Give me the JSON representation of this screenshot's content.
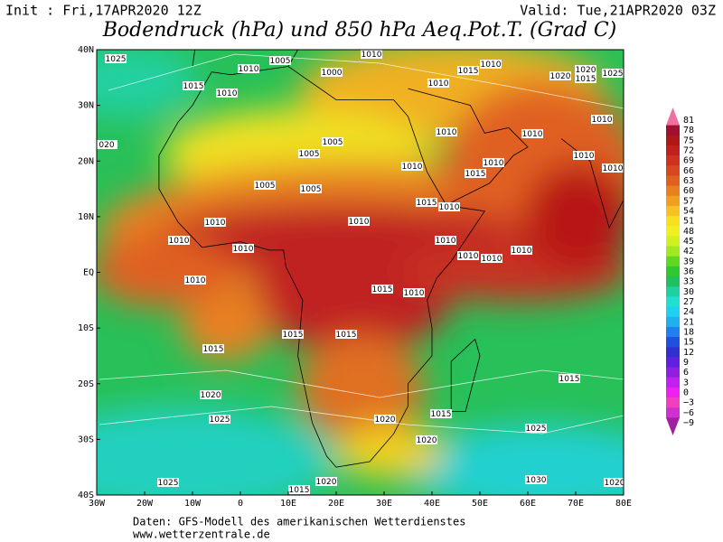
{
  "header": {
    "init": "Init : Fri,17APR2020 12Z",
    "valid": "Valid: Tue,21APR2020 03Z",
    "title": "Bodendruck (hPa) und 850 hPa Aeq.Pot.T. (Grad C)"
  },
  "map": {
    "lat_labels": [
      "40N",
      "30N",
      "20N",
      "10N",
      "EQ",
      "10S",
      "20S",
      "30S",
      "40S"
    ],
    "lon_labels": [
      "30W",
      "20W",
      "10W",
      "0",
      "10E",
      "20E",
      "30E",
      "40E",
      "50E",
      "60E",
      "70E",
      "80E"
    ],
    "isobar_labels": [
      "1025",
      "1010",
      "1005",
      "1000",
      "1010",
      "1015",
      "1010",
      "1020",
      "1025",
      "1015",
      "1010",
      "1010",
      "1020",
      "1015",
      "1010",
      "020",
      "1005",
      "1005",
      "1010",
      "1010",
      "1010",
      "1010",
      "1010",
      "1010",
      "1015",
      "1005",
      "1005",
      "1015",
      "1010",
      "1010",
      "1010",
      "1010",
      "1010",
      "1010",
      "1010",
      "1010",
      "1010",
      "1010",
      "1015",
      "1015",
      "1010",
      "1015",
      "1015",
      "1015",
      "1020",
      "1025",
      "1020",
      "1015",
      "1025",
      "1020",
      "1025",
      "1020",
      "1015",
      "1030",
      "1020"
    ]
  },
  "colorbar": {
    "labels": [
      "81",
      "78",
      "75",
      "72",
      "69",
      "66",
      "63",
      "60",
      "57",
      "54",
      "51",
      "48",
      "45",
      "42",
      "39",
      "36",
      "33",
      "30",
      "27",
      "24",
      "21",
      "18",
      "15",
      "12",
      "9",
      "6",
      "3",
      "0",
      "−3",
      "−6",
      "−9"
    ]
  },
  "footer": {
    "source": "Daten: GFS-Modell des amerikanischen Wetterdienstes",
    "site": "www.wetterzentrale.de"
  }
}
